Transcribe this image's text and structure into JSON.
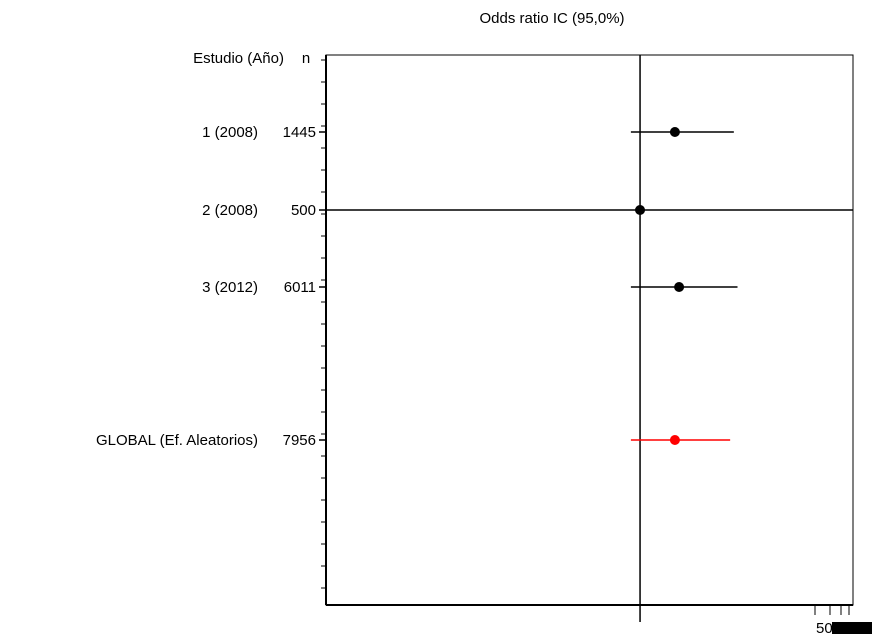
{
  "chart_data": {
    "type": "forest",
    "title": "Odds ratio IC  (95,0%)",
    "header": {
      "study": "Estudio  (Año)",
      "n": "n"
    },
    "reference_line": 1,
    "rows": [
      {
        "study": "1 (2008)",
        "n": "1445",
        "or": 1.08,
        "ci": [
          0.98,
          1.23
        ],
        "color": "#000000"
      },
      {
        "study": "2 (2008)",
        "n": "500",
        "or": 1.0,
        "ci": [
          0.5,
          1.6
        ],
        "color": "#000000"
      },
      {
        "study": "3 (2012)",
        "n": "6011",
        "or": 1.09,
        "ci": [
          0.98,
          1.24
        ],
        "color": "#000000"
      },
      {
        "study": "GLOBAL (Ef. Aleatorios)",
        "n": "7956",
        "or": 1.08,
        "ci": [
          0.98,
          1.22
        ],
        "color": "#ff0000"
      }
    ],
    "axis_label_fragment": "50"
  }
}
